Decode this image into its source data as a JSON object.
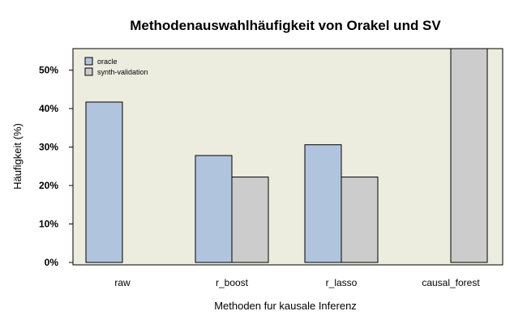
{
  "chart_data": {
    "type": "bar",
    "title": "Methodenauswahlhäufigkeit von Orakel und SV",
    "xlabel": "Methoden fur kausale Inferenz",
    "ylabel": "Häufigkeit (%)",
    "categories": [
      "raw",
      "r_boost",
      "r_lasso",
      "causal_forest"
    ],
    "series": [
      {
        "name": "oracle",
        "values": [
          41.7,
          27.8,
          30.6,
          0
        ],
        "color": "#b0c4de"
      },
      {
        "name": "synth-validation",
        "values": [
          0,
          22.2,
          22.2,
          55.6
        ],
        "color": "#cccccc"
      }
    ],
    "ylim": [
      0,
      55.6
    ],
    "yticks": [
      0,
      10,
      20,
      30,
      40,
      50
    ],
    "ytick_labels": [
      "0%",
      "10%",
      "20%",
      "30%",
      "40%",
      "50%"
    ],
    "legend_position": "top-left",
    "grid": false,
    "panel_background": "#ededdf"
  }
}
